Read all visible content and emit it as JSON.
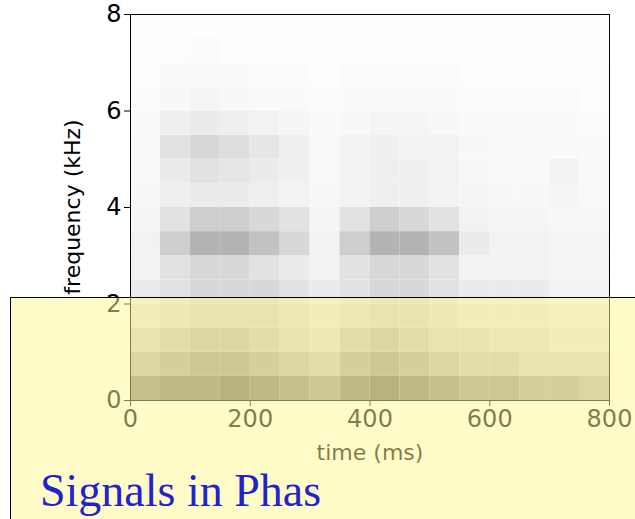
{
  "chart_data": {
    "type": "heatmap",
    "x_label": "time (ms)",
    "y_label": "frequency (kHz)",
    "annotation": "Signals in Phas",
    "xlim": [
      0,
      800
    ],
    "xticks": [
      0,
      200,
      400,
      600,
      800
    ],
    "ylim": [
      0,
      8
    ],
    "yticks": [
      0,
      2,
      4,
      6,
      8
    ],
    "grid": false,
    "zlim": [
      0,
      1
    ],
    "time_bins": [
      0,
      50,
      100,
      150,
      200,
      250,
      300,
      350,
      400,
      450,
      500,
      550,
      600,
      650,
      700,
      750,
      800
    ],
    "frequency_bins": [
      0,
      0.5,
      1,
      1.5,
      2,
      2.5,
      3,
      3.5,
      4,
      4.5,
      5,
      5.5,
      6,
      6.5,
      7,
      7.5,
      8
    ],
    "cells": [
      [
        0.55,
        0.6,
        0.6,
        0.65,
        0.6,
        0.55,
        0.5,
        0.6,
        0.65,
        0.6,
        0.55,
        0.5,
        0.5,
        0.45,
        0.45,
        0.4
      ],
      [
        0.4,
        0.45,
        0.5,
        0.5,
        0.45,
        0.4,
        0.35,
        0.45,
        0.5,
        0.45,
        0.4,
        0.35,
        0.35,
        0.3,
        0.3,
        0.3
      ],
      [
        0.3,
        0.35,
        0.4,
        0.4,
        0.35,
        0.3,
        0.25,
        0.35,
        0.4,
        0.35,
        0.3,
        0.3,
        0.25,
        0.25,
        0.2,
        0.2
      ],
      [
        0.2,
        0.25,
        0.3,
        0.3,
        0.3,
        0.25,
        0.2,
        0.25,
        0.3,
        0.3,
        0.25,
        0.2,
        0.2,
        0.2,
        0.15,
        0.15
      ],
      [
        0.15,
        0.2,
        0.25,
        0.25,
        0.25,
        0.2,
        0.15,
        0.2,
        0.25,
        0.25,
        0.2,
        0.15,
        0.15,
        0.15,
        0.1,
        0.1
      ],
      [
        0.1,
        0.2,
        0.25,
        0.25,
        0.2,
        0.15,
        0.1,
        0.2,
        0.25,
        0.25,
        0.2,
        0.1,
        0.1,
        0.1,
        0.08,
        0.08
      ],
      [
        0.1,
        0.3,
        0.4,
        0.4,
        0.35,
        0.25,
        0.1,
        0.3,
        0.4,
        0.4,
        0.35,
        0.15,
        0.1,
        0.1,
        0.08,
        0.08
      ],
      [
        0.08,
        0.2,
        0.3,
        0.3,
        0.25,
        0.2,
        0.08,
        0.2,
        0.3,
        0.25,
        0.2,
        0.1,
        0.08,
        0.08,
        0.06,
        0.06
      ],
      [
        0.06,
        0.12,
        0.15,
        0.15,
        0.12,
        0.1,
        0.06,
        0.1,
        0.12,
        0.12,
        0.1,
        0.08,
        0.06,
        0.06,
        0.08,
        0.05
      ],
      [
        0.05,
        0.15,
        0.2,
        0.18,
        0.15,
        0.12,
        0.05,
        0.1,
        0.12,
        0.12,
        0.1,
        0.06,
        0.05,
        0.05,
        0.1,
        0.05
      ],
      [
        0.05,
        0.2,
        0.25,
        0.22,
        0.18,
        0.12,
        0.05,
        0.1,
        0.12,
        0.1,
        0.1,
        0.06,
        0.05,
        0.05,
        0.05,
        0.04
      ],
      [
        0.04,
        0.12,
        0.15,
        0.12,
        0.1,
        0.08,
        0.04,
        0.06,
        0.08,
        0.08,
        0.06,
        0.04,
        0.04,
        0.04,
        0.04,
        0.03
      ],
      [
        0.03,
        0.06,
        0.08,
        0.06,
        0.05,
        0.04,
        0.03,
        0.04,
        0.05,
        0.05,
        0.04,
        0.03,
        0.03,
        0.03,
        0.03,
        0.02
      ],
      [
        0.02,
        0.04,
        0.05,
        0.04,
        0.03,
        0.03,
        0.02,
        0.03,
        0.03,
        0.03,
        0.03,
        0.02,
        0.02,
        0.02,
        0.02,
        0.02
      ],
      [
        0.01,
        0.02,
        0.03,
        0.02,
        0.02,
        0.02,
        0.01,
        0.02,
        0.02,
        0.02,
        0.02,
        0.01,
        0.01,
        0.01,
        0.01,
        0.01
      ],
      [
        0.01,
        0.01,
        0.01,
        0.01,
        0.01,
        0.01,
        0.01,
        0.01,
        0.01,
        0.01,
        0.01,
        0.01,
        0.01,
        0.01,
        0.01,
        0.01
      ]
    ]
  }
}
